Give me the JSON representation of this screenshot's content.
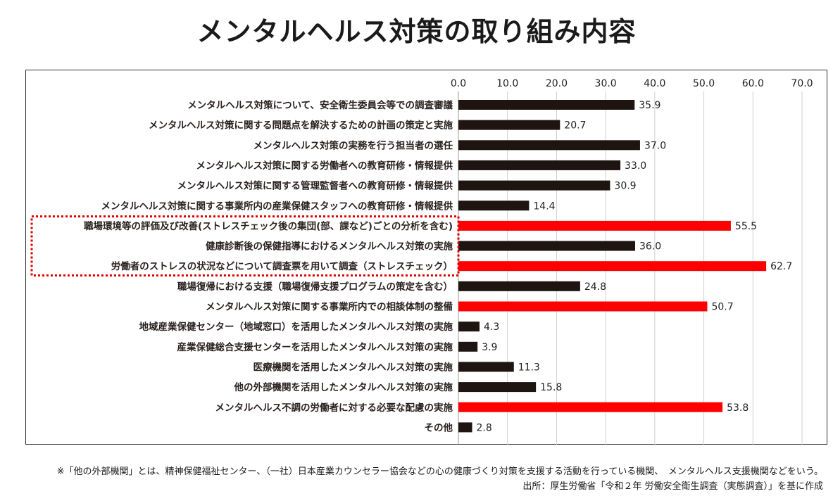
{
  "title": "メンタルヘルス対策の取り組み内容",
  "chart_data": {
    "type": "bar",
    "orientation": "horizontal",
    "title": "メンタルヘルス対策の取り組み内容",
    "xlim": [
      0,
      70
    ],
    "xticks": [
      "0.0",
      "10.0",
      "20.0",
      "30.0",
      "40.0",
      "50.0",
      "60.0",
      "70.0"
    ],
    "xtick_values": [
      0,
      10,
      20,
      30,
      40,
      50,
      60,
      70
    ],
    "grid": true,
    "categories": [
      "メンタルヘルス対策について、安全衛生委員会等での調査審議",
      "メンタルヘルス対策に関する問題点を解決するための計画の策定と実施",
      "メンタルヘルス対策の実務を行う担当者の選任",
      "メンタルヘルス対策に関する労働者への教育研修・情報提供",
      "メンタルヘルス対策に関する管理監督者への教育研修・情報提供",
      "メンタルヘルス対策に関する事業所内の産業保健スタッフへの教育研修・情報提供",
      "職場環境等の評価及び改善(ストレスチェック後の集団(部、課など)ごとの分析を含む)",
      "健康診断後の保健指導におけるメンタルヘルス対策の実施",
      "労働者のストレスの状況などについて調査票を用いて調査（ストレスチェック）",
      "職場復帰における支援（職場復帰支援プログラムの策定を含む）",
      "メンタルヘルス対策に関する事業所内での相談体制の整備",
      "地域産業保健センター（地域窓口）を活用したメンタルヘルス対策の実施",
      "産業保健総合支援センターを活用したメンタルヘルス対策の実施",
      "医療機関を活用したメンタルヘルス対策の実施",
      "他の外部機関を活用したメンタルヘルス対策の実施",
      "メンタルヘルス不調の労働者に対する必要な配慮の実施",
      "その他"
    ],
    "values": [
      35.9,
      20.7,
      37.0,
      33.0,
      30.9,
      14.4,
      55.5,
      36.0,
      62.7,
      24.8,
      50.7,
      4.3,
      3.9,
      11.3,
      15.8,
      53.8,
      2.8
    ],
    "value_labels": [
      "35.9",
      "20.7",
      "37.0",
      "33.0",
      "30.9",
      "14.4",
      "55.5",
      "36.0",
      "62.7",
      "24.8",
      "50.7",
      "4.3",
      "3.9",
      "11.3",
      "15.8",
      "53.8",
      "2.8"
    ],
    "highlighted": [
      false,
      false,
      false,
      false,
      false,
      false,
      true,
      false,
      true,
      false,
      true,
      false,
      false,
      false,
      false,
      true,
      false
    ],
    "highlight_group": [
      6,
      7,
      8
    ],
    "colors": {
      "normal": "#1e1410",
      "highlight": "#ff0000",
      "box": "#e00000",
      "grid": "#d0d0d0"
    }
  },
  "notes": {
    "footnote": "※「他の外部機関」とは、精神保健福祉センター、（一社）日本産業カウンセラー協会などの心の健康づくり対策を支援する活動を行っている機関、　メンタルヘルス支援機関などをいう。",
    "source": "出所：厚生労働省「令和２年 労働安全衛生調査（実態調査）」を基に作成"
  }
}
